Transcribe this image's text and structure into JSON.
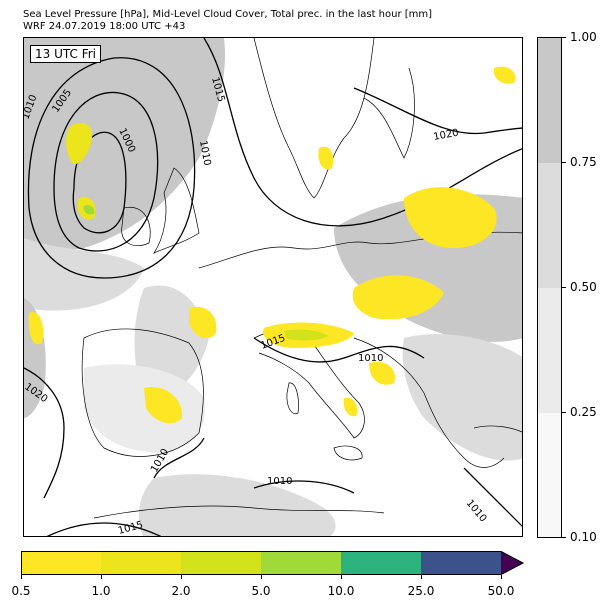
{
  "title": {
    "line1": "Sea Level Pressure [hPa], Mid-Level Cloud Cover, Total prec. in the last hour [mm]",
    "line2": "WRF 24.07.2019 18:00 UTC +43"
  },
  "map": {
    "time_badge": "13 UTC Fri",
    "isobar_labels": [
      "1015",
      "1010",
      "1005",
      "1000",
      "1010",
      "1020",
      "1020",
      "1015",
      "1010",
      "1010",
      "1010",
      "1010",
      "1015"
    ]
  },
  "cloud_colorbar": {
    "ticks": [
      "1.00",
      "0.75",
      "0.50",
      "0.25",
      "0.10"
    ],
    "colors": [
      "#c8c8c8",
      "#dcdcdc",
      "#ebebeb",
      "#f8f8f8"
    ]
  },
  "precip_colorbar": {
    "ticks": [
      "0.5",
      "1.0",
      "2.0",
      "5.0",
      "10.0",
      "25.0",
      "50.0"
    ],
    "colors": [
      "#fde725",
      "#ede51b",
      "#d2e21b",
      "#a0da39",
      "#2db27d",
      "#3b528b",
      "#440154"
    ]
  }
}
